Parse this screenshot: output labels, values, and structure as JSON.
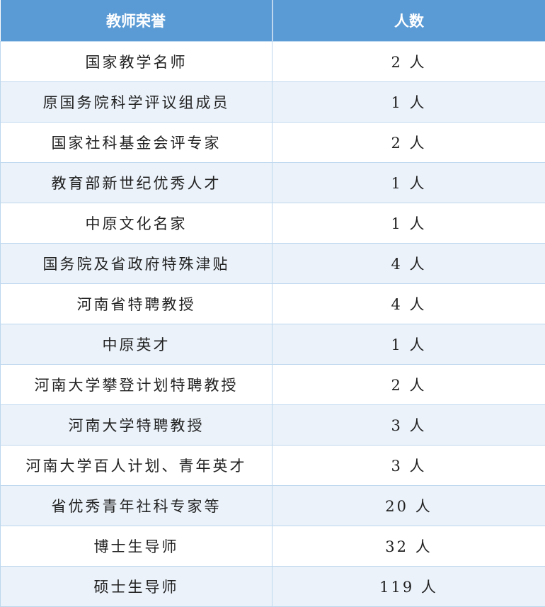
{
  "header": {
    "honor": "教师荣誉",
    "count": "人数"
  },
  "rows": [
    {
      "honor": "国家教学名师",
      "count": "2 人"
    },
    {
      "honor": "原国务院科学评议组成员",
      "count": "1 人"
    },
    {
      "honor": "国家社科基金会评专家",
      "count": "2 人"
    },
    {
      "honor": "教育部新世纪优秀人才",
      "count": "1 人"
    },
    {
      "honor": "中原文化名家",
      "count": "1 人"
    },
    {
      "honor": "国务院及省政府特殊津贴",
      "count": "4 人"
    },
    {
      "honor": "河南省特聘教授",
      "count": "4 人"
    },
    {
      "honor": "中原英才",
      "count": "1 人"
    },
    {
      "honor": "河南大学攀登计划特聘教授",
      "count": "2 人"
    },
    {
      "honor": "河南大学特聘教授",
      "count": "3 人"
    },
    {
      "honor": "河南大学百人计划、青年英才",
      "count": "3 人"
    },
    {
      "honor": "省优秀青年社科专家等",
      "count": "20 人"
    },
    {
      "honor": "博士生导师",
      "count": "32 人"
    },
    {
      "honor": "硕士生导师",
      "count": "119 人"
    }
  ]
}
